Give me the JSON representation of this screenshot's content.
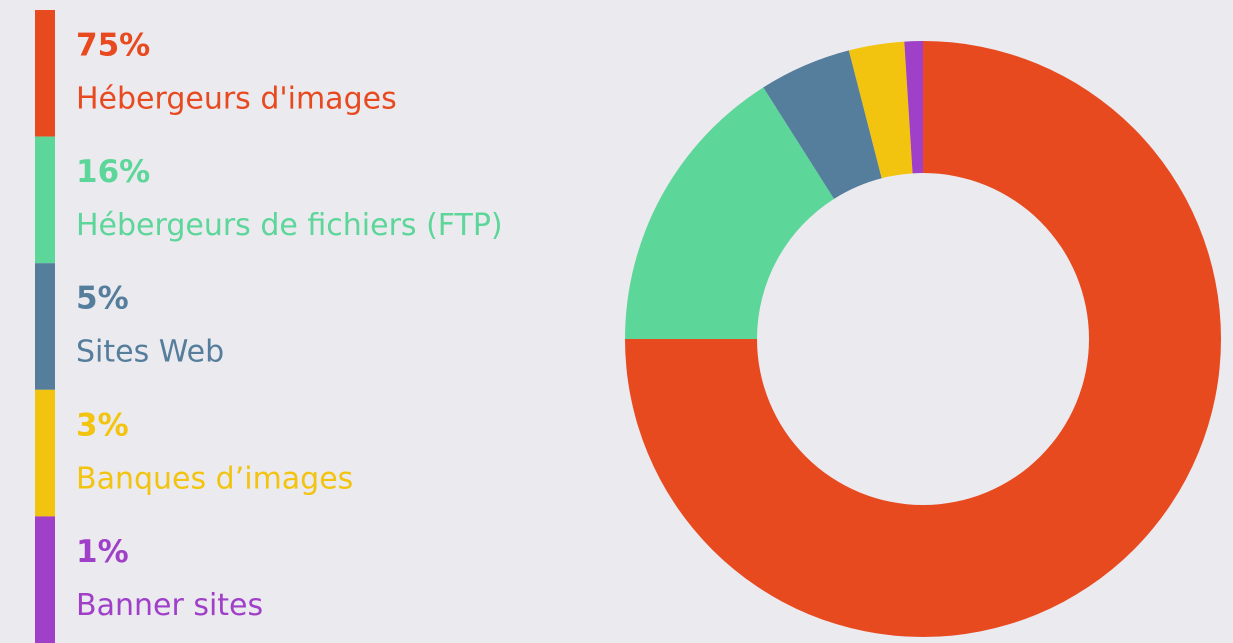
{
  "chart_data": {
    "type": "pie",
    "categories": [
      "Hébergeurs d'images",
      "Hébergeurs de fichiers (FTP)",
      "Sites Web",
      "Banques d’images",
      "Banner sites"
    ],
    "values": [
      75,
      16,
      5,
      3,
      1
    ],
    "value_labels": [
      "75%",
      "16%",
      "5%",
      "3%",
      "1%"
    ],
    "colors": [
      "#e84a20",
      "#5dd69a",
      "#557d9c",
      "#f2c40f",
      "#a040c8"
    ]
  }
}
